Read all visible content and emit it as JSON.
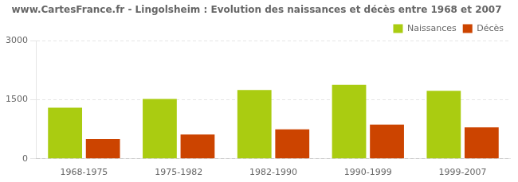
{
  "chart_data": {
    "type": "bar",
    "title": "www.CartesFrance.fr - Lingolsheim : Evolution des naissances et décès entre 1968 et 2007",
    "categories": [
      "1968-1975",
      "1975-1982",
      "1982-1990",
      "1990-1999",
      "1999-2007"
    ],
    "series": [
      {
        "name": "Naissances",
        "color": "#aacc11",
        "values": [
          1300,
          1520,
          1750,
          1880,
          1730
        ]
      },
      {
        "name": "Décès",
        "color": "#cc4400",
        "values": [
          500,
          620,
          750,
          870,
          800
        ]
      }
    ],
    "ylim": [
      0,
      3000
    ],
    "yticks": [
      0,
      1500,
      3000
    ],
    "grid": true,
    "legend": "upper right"
  }
}
